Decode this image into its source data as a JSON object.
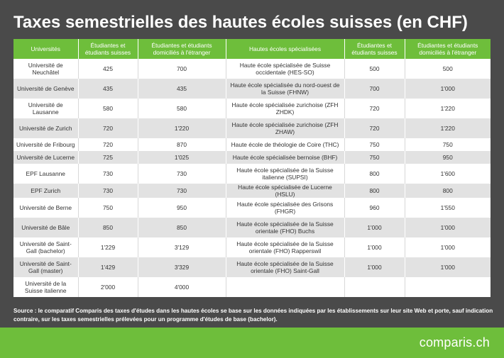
{
  "title": "Taxes semestrielles des hautes écoles suisses (en CHF)",
  "table": {
    "headers": [
      "Universités",
      "Étudiantes et étudiants suisses",
      "Étudiantes et étudiants domiciliés à l'étranger",
      "Hautes écoles spécialisées",
      "Étudiantes et étudiants suisses",
      "Étudiantes et étudiants domiciliés à l'étranger"
    ],
    "rows": [
      [
        "Université de Neuchâtel",
        "425",
        "700",
        "Haute école spécialisée de Suisse occidentale (HES-SO)",
        "500",
        "500"
      ],
      [
        "Université de Genève",
        "435",
        "435",
        "Haute école spécialisée du nord-ouest de la Suisse (FHNW)",
        "700",
        "1'000"
      ],
      [
        "Université de Lausanne",
        "580",
        "580",
        "Haute école spécialisée zurichoise (ZFH ZHDK)",
        "720",
        "1'220"
      ],
      [
        "Université de Zurich",
        "720",
        "1'220",
        "Haute école spécialisée zurichoise (ZFH ZHAW)",
        "720",
        "1'220"
      ],
      [
        "Université de Fribourg",
        "720",
        "870",
        "Haute école de théologie de Coire (THC)",
        "750",
        "750"
      ],
      [
        "Université de Lucerne",
        "725",
        "1'025",
        "Haute école spécialisée bernoise (BHF)",
        "750",
        "950"
      ],
      [
        "EPF Lausanne",
        "730",
        "730",
        "Haute école spécialisée de la Suisse italienne (SUPSI)",
        "800",
        "1'600"
      ],
      [
        "EPF Zurich",
        "730",
        "730",
        "Haute école spécialisée de Lucerne (HSLU)",
        "800",
        "800"
      ],
      [
        "Université de Berne",
        "750",
        "950",
        "Haute école spécialisée des Grisons (FHGR)",
        "960",
        "1'550"
      ],
      [
        "Université de Bâle",
        "850",
        "850",
        "Haute école spécialisée de la Suisse orientale (FHO) Buchs",
        "1'000",
        "1'000"
      ],
      [
        "Université de Saint-Gall (bachelor)",
        "1'229",
        "3'129",
        "Haute école spécialisée de la Suisse orientale (FHO) Rapperswil",
        "1'000",
        "1'000"
      ],
      [
        "Université de Saint-Gall (master)",
        "1'429",
        "3'329",
        "Haute école spécialisée de la Suisse orientale (FHO) Saint-Gall",
        "1'000",
        "1'000"
      ],
      [
        "Université de la Suisse italienne",
        "2'000",
        "4'000",
        "",
        "",
        ""
      ]
    ]
  },
  "source_note": "Source : le comparatif Comparis des taxes d'études dans les hautes écoles se base sur les données indiquées par les établissements sur leur site Web et porte, sauf indication contraire, sur les taxes semestrielles prélevées pour un programme d'études de base (bachelor).",
  "logo": "comparis.ch",
  "colors": {
    "background": "#4a4a4a",
    "accent_green": "#6ebe3b",
    "row_alt": "#e2e2e2"
  }
}
